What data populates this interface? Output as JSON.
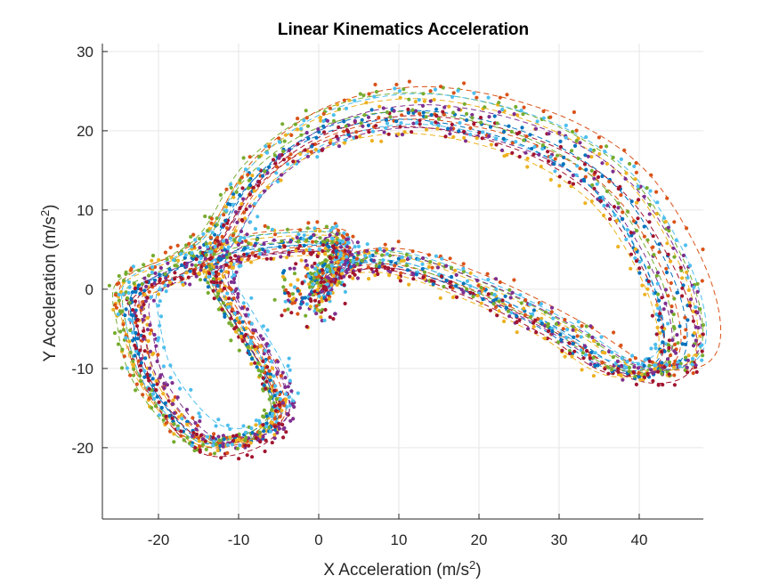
{
  "chart_data": {
    "type": "scatter",
    "title": "Linear Kinematics Acceleration",
    "xlabel": {
      "text": "X Acceleration (m/s",
      "sup": "2",
      "close": ")"
    },
    "ylabel": {
      "text": "Y Acceleration (m/s",
      "sup": "2",
      "close": ")"
    },
    "xlim": [
      -27,
      48
    ],
    "ylim": [
      -29,
      31
    ],
    "xticks": [
      -20,
      -10,
      0,
      10,
      20,
      30,
      40
    ],
    "yticks": [
      -20,
      -10,
      0,
      10,
      20,
      30
    ],
    "grid": true,
    "box": "top-right open, left-bottom axes",
    "palette": [
      "#0072bd",
      "#d95319",
      "#edb120",
      "#7e2f8e",
      "#77ac30",
      "#4dbeee",
      "#a2142f"
    ],
    "trajectory": {
      "description": "loop through origin",
      "waypoints": [
        [
          0,
          0
        ],
        [
          3,
          3
        ],
        [
          10,
          3.5
        ],
        [
          20,
          0
        ],
        [
          30,
          -5
        ],
        [
          38,
          -10
        ],
        [
          44,
          -10
        ],
        [
          46,
          -6
        ],
        [
          44,
          2
        ],
        [
          38,
          12
        ],
        [
          30,
          18
        ],
        [
          20,
          21.5
        ],
        [
          10,
          22.5
        ],
        [
          0,
          20
        ],
        [
          -8,
          14
        ],
        [
          -13,
          6
        ],
        [
          -17,
          3
        ],
        [
          -23,
          0
        ],
        [
          -23,
          -5
        ],
        [
          -21,
          -12
        ],
        [
          -15,
          -19
        ],
        [
          -9,
          -19
        ],
        [
          -5,
          -16
        ],
        [
          -6,
          -11
        ],
        [
          -10,
          -4
        ],
        [
          -13,
          2
        ],
        [
          -10,
          5
        ],
        [
          0,
          6
        ],
        [
          3,
          5
        ],
        [
          0,
          0
        ]
      ]
    },
    "series": [
      {
        "color": "#0072bd",
        "scale": 1.0,
        "dx": 0.0,
        "dy": 0.0
      },
      {
        "color": "#d95319",
        "scale": 0.97,
        "dx": 0.6,
        "dy": -0.4
      },
      {
        "color": "#edb120",
        "scale": 1.04,
        "dx": -0.5,
        "dy": 0.6
      },
      {
        "color": "#7e2f8e",
        "scale": 0.94,
        "dx": 0.9,
        "dy": -0.8
      },
      {
        "color": "#77ac30",
        "scale": 1.06,
        "dx": -0.8,
        "dy": 0.9
      },
      {
        "color": "#4dbeee",
        "scale": 0.91,
        "dx": 1.1,
        "dy": 0.3
      },
      {
        "color": "#a2142f",
        "scale": 1.02,
        "dx": 0.3,
        "dy": -1.1
      },
      {
        "color": "#0072bd",
        "scale": 0.96,
        "dx": -1.0,
        "dy": -0.2
      },
      {
        "color": "#d95319",
        "scale": 1.08,
        "dx": 0.5,
        "dy": 1.2
      },
      {
        "color": "#edb120",
        "scale": 0.93,
        "dx": -0.3,
        "dy": -1.3
      },
      {
        "color": "#7e2f8e",
        "scale": 1.01,
        "dx": 1.3,
        "dy": 0.5
      },
      {
        "color": "#77ac30",
        "scale": 0.99,
        "dx": -1.2,
        "dy": 0.1
      },
      {
        "color": "#4dbeee",
        "scale": 1.05,
        "dx": 0.1,
        "dy": 1.0
      },
      {
        "color": "#a2142f",
        "scale": 0.95,
        "dx": -0.6,
        "dy": -0.9
      }
    ]
  }
}
